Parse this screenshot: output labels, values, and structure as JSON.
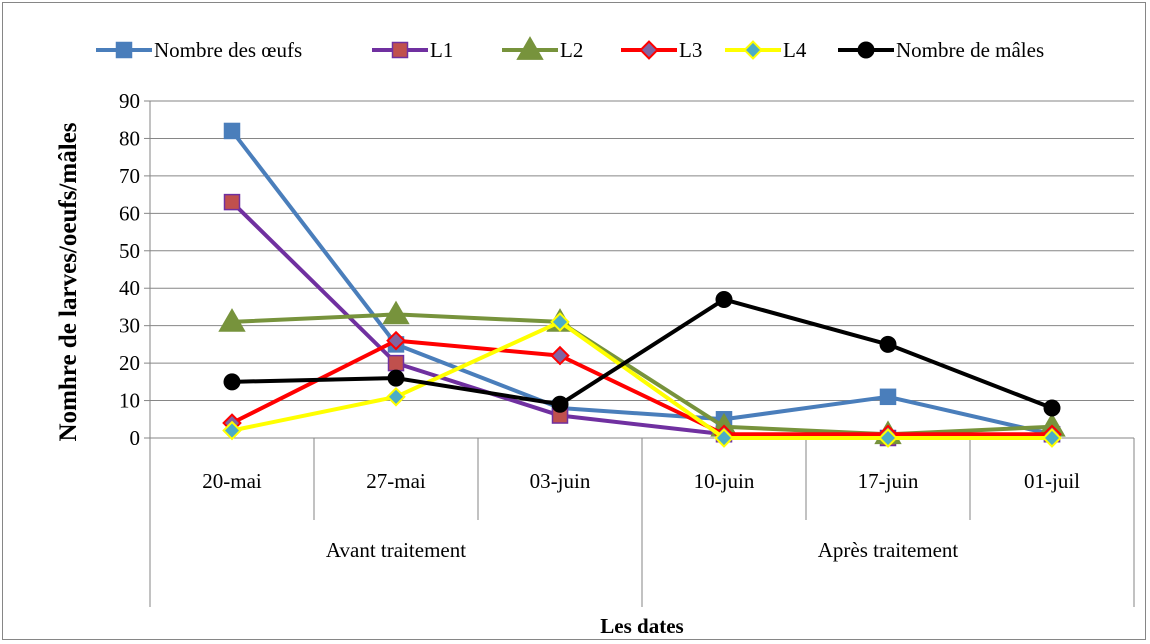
{
  "chart_data": {
    "type": "line",
    "title": "",
    "xlabel": "Les dates",
    "ylabel": "Nomhre de larves/oeufs/mâles",
    "ylim": [
      0,
      90
    ],
    "yticks": [
      0,
      10,
      20,
      30,
      40,
      50,
      60,
      70,
      80,
      90
    ],
    "grid": true,
    "legend_position": "top",
    "categories": [
      "20-mai",
      "27-mai",
      "03-juin",
      "10-juin",
      "17-juin",
      "01-juil"
    ],
    "groups": [
      {
        "label": "Avant traitement",
        "span": [
          0,
          2
        ]
      },
      {
        "label": "Après traitement",
        "span": [
          3,
          5
        ]
      }
    ],
    "series": [
      {
        "name": "Nombre des œufs",
        "color": "#4A7EBB",
        "fill": "#4A7EBB",
        "marker": "square",
        "values": [
          82,
          25,
          8,
          5,
          11,
          1
        ]
      },
      {
        "name": "L1",
        "color": "#7030A0",
        "fill": "#C0504D",
        "marker": "square",
        "values": [
          63,
          20,
          6,
          1,
          0,
          1
        ]
      },
      {
        "name": "L2",
        "color": "#77933C",
        "fill": "#77933C",
        "marker": "triangle",
        "values": [
          31,
          33,
          31,
          3,
          1,
          3
        ]
      },
      {
        "name": "L3",
        "color": "#FF0000",
        "fill": "#8064A2",
        "marker": "diamond",
        "values": [
          4,
          26,
          22,
          1,
          1,
          1
        ]
      },
      {
        "name": "L4",
        "color": "#FFFF00",
        "fill": "#4BACC6",
        "marker": "diamond",
        "values": [
          2,
          11,
          31,
          0,
          0,
          0
        ]
      },
      {
        "name": "Nombre de mâles",
        "color": "#000000",
        "fill": "#000000",
        "marker": "circle",
        "values": [
          15,
          16,
          9,
          37,
          25,
          8
        ]
      }
    ]
  }
}
